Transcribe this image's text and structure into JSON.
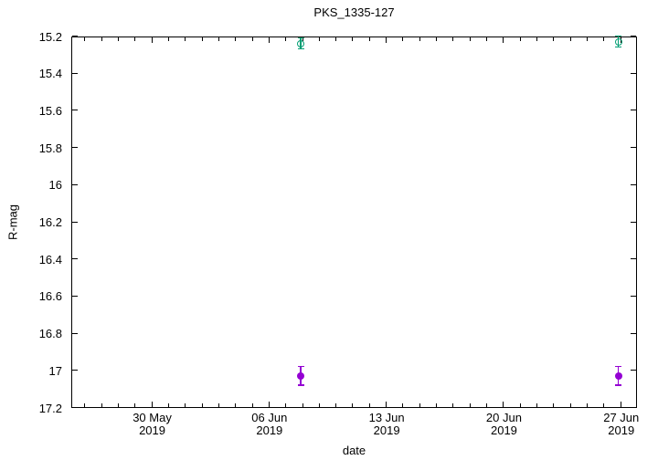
{
  "chart_data": {
    "type": "scatter",
    "title": "PKS_1335-127",
    "xlabel": "date",
    "ylabel": "R-mag",
    "grid": false,
    "legend": null,
    "background_color": "#ffffff",
    "axis_color": "#000000",
    "y_axis": {
      "min": 15.2,
      "max": 17.2,
      "inverted": true,
      "tick_step": 0.2,
      "ticks": [
        15.2,
        15.4,
        15.6,
        15.8,
        16.0,
        16.2,
        16.4,
        16.6,
        16.8,
        17.0,
        17.2
      ],
      "tick_labels": [
        "15.2",
        "15.4",
        "15.6",
        "15.8",
        "16",
        "16.2",
        "16.4",
        "16.6",
        "16.8",
        "17",
        "17.2"
      ]
    },
    "x_axis": {
      "unit": "days-since-30-May-2019",
      "min_days": -4.83,
      "max_days": 28.94,
      "minor_tick_interval_days": 1,
      "major_ticks": [
        {
          "days": 0,
          "label": "30 May\n2019"
        },
        {
          "days": 7,
          "label": "06 Jun\n2019"
        },
        {
          "days": 14,
          "label": "13 Jun\n2019"
        },
        {
          "days": 21,
          "label": "20 Jun\n2019"
        },
        {
          "days": 28,
          "label": "27 Jun\n2019"
        }
      ]
    },
    "series": [
      {
        "name": "green-open-circles",
        "marker": "open-circle",
        "color": "#009e73",
        "points": [
          {
            "date": "2019-06-08",
            "days": 8.9,
            "mag": 15.24,
            "err": 0.03
          },
          {
            "date": "2019-06-27",
            "days": 27.85,
            "mag": 15.23,
            "err": 0.03
          }
        ]
      },
      {
        "name": "purple-filled-circles",
        "marker": "filled-circle",
        "color": "#9400d3",
        "points": [
          {
            "date": "2019-06-08",
            "days": 8.9,
            "mag": 17.03,
            "err": 0.05
          },
          {
            "date": "2019-06-27",
            "days": 27.85,
            "mag": 17.03,
            "err": 0.05
          }
        ]
      }
    ]
  }
}
